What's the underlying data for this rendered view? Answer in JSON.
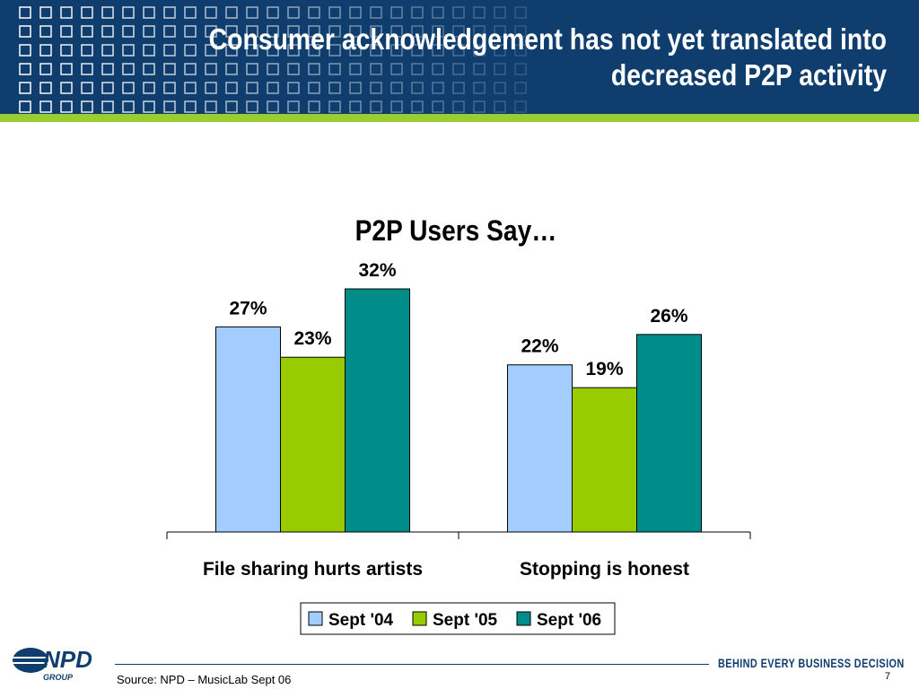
{
  "slide": {
    "title": "Consumer acknowledgement has not yet translated into\ndecreased P2P activity",
    "source": "Source: NPD – MusicLab Sept 06",
    "page_number": "7",
    "tagline": "BEHIND EVERY BUSINESS DECISION",
    "logo_text": "NPD",
    "logo_subtext": "GROUP"
  },
  "colors": {
    "header_bg": "#0e3d6e",
    "accent_stripe": "#9acd32"
  },
  "chart_data": {
    "type": "bar",
    "title": "P2P Users Say…",
    "categories": [
      "File sharing hurts artists",
      "Stopping is honest"
    ],
    "series": [
      {
        "name": "Sept '04",
        "values": [
          27,
          22
        ],
        "labels": [
          "27%",
          "22%"
        ],
        "color": "#a3ccff"
      },
      {
        "name": "Sept '05",
        "values": [
          23,
          19
        ],
        "labels": [
          "23%",
          "19%"
        ],
        "color": "#99cc00"
      },
      {
        "name": "Sept '06",
        "values": [
          32,
          26
        ],
        "labels": [
          "32%",
          "26%"
        ],
        "color": "#008d8a"
      }
    ],
    "ylim": [
      0,
      32
    ],
    "grid": false,
    "legend": "bottom"
  }
}
